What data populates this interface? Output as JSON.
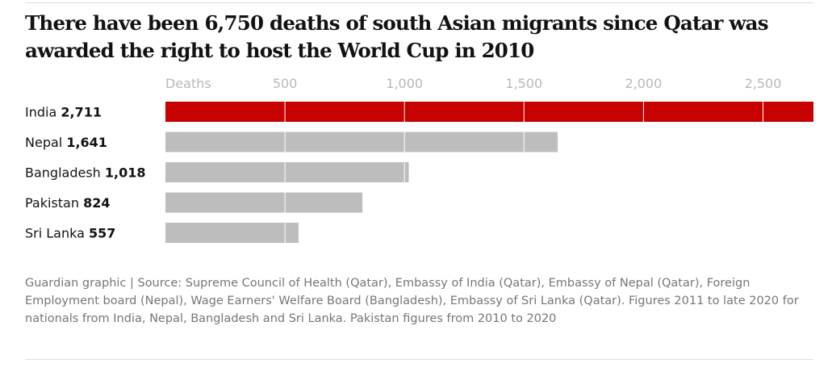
{
  "page": {
    "title": "There have been 6,750 deaths of south Asian migrants since Qatar was awarded the right to host the World Cup in 2010",
    "footer": "Guardian graphic | Source: Supreme Council of Health (Qatar), Embassy of India (Qatar), Embassy of Nepal (Qatar), Foreign Employment board (Nepal), Wage Earners' Welfare Board (Bangladesh), Embassy of Sri Lanka (Qatar). Figures 2011 to late 2020 for nationals from India, Nepal, Bangladesh and Sri Lanka. Pakistan figures from 2010 to 2020"
  },
  "colors": {
    "highlight": "#c70000",
    "bar": "#bdbdbd",
    "gridline": "#ffffff",
    "tick_text": "#b8b8b8",
    "footer_text": "#767676",
    "rule": "#dcdcdc"
  },
  "chart_data": {
    "type": "bar",
    "orientation": "horizontal",
    "categories": [
      "India",
      "Nepal",
      "Bangladesh",
      "Pakistan",
      "Sri Lanka"
    ],
    "values": [
      2711,
      1641,
      1018,
      824,
      557
    ],
    "value_labels": [
      "2,711",
      "1,641",
      "1,018",
      "824",
      "557"
    ],
    "highlighted_category": "India",
    "axis_label": "Deaths",
    "ticks": [
      {
        "value": 500,
        "label": "500"
      },
      {
        "value": 1000,
        "label": "1,000"
      },
      {
        "value": 1500,
        "label": "1,500"
      },
      {
        "value": 2000,
        "label": "2,000"
      },
      {
        "value": 2500,
        "label": "2,500"
      }
    ],
    "xlim": [
      0,
      2711
    ],
    "grid": true,
    "legend": "none"
  }
}
